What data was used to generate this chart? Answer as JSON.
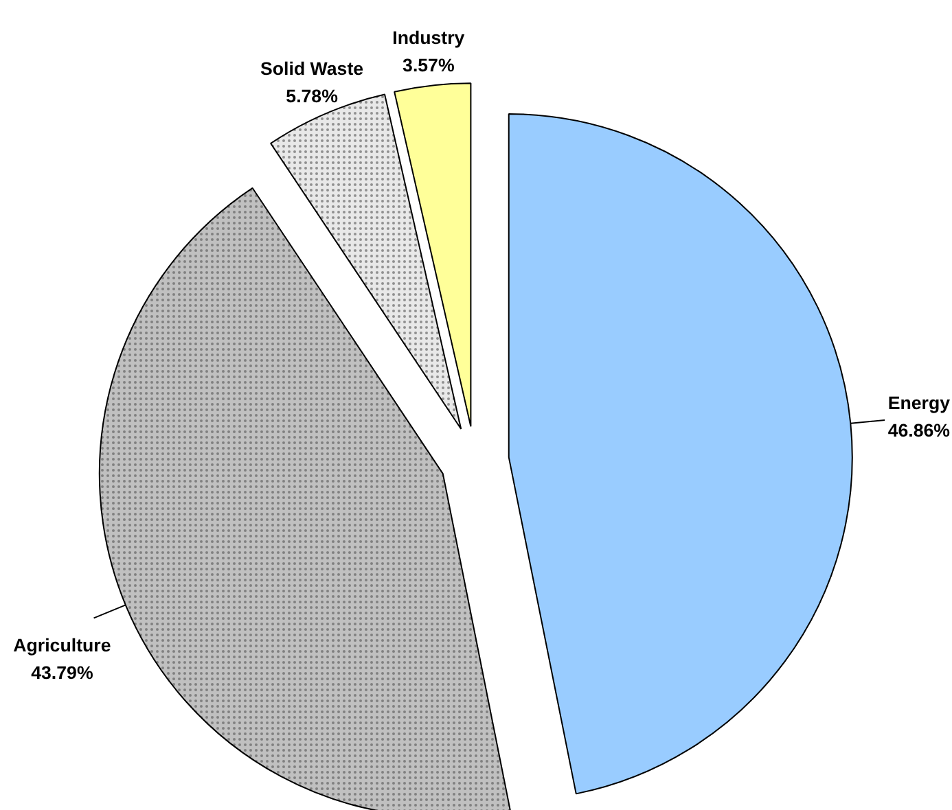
{
  "chart_data": {
    "type": "pie",
    "categories": [
      "Energy",
      "Agriculture",
      "Solid Waste",
      "Industry"
    ],
    "values": [
      46.86,
      43.79,
      5.78,
      3.57
    ],
    "colors": [
      "#99ccff",
      "#c0c0c0",
      "#e8e8e8",
      "#ffff99"
    ],
    "value_labels": [
      "46.86%",
      "43.79%",
      "5.78%",
      "3.57%"
    ]
  }
}
